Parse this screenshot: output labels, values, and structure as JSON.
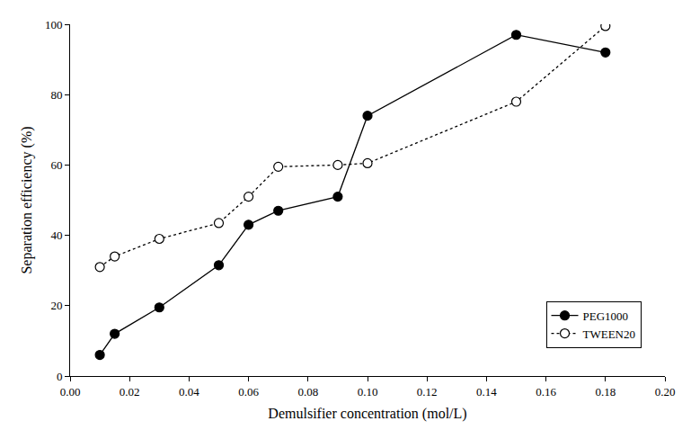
{
  "chart_data": {
    "type": "line",
    "x_label": "Demulsifier concentration (mol/L)",
    "y_label": "Separation efficiency (%)",
    "xlim": [
      0,
      0.2
    ],
    "ylim": [
      0,
      100
    ],
    "xticks": [
      {
        "value": 0,
        "label": "0.00"
      },
      {
        "value": 0.02,
        "label": "0.02"
      },
      {
        "value": 0.04,
        "label": "0.04"
      },
      {
        "value": 0.06,
        "label": "0.06"
      },
      {
        "value": 0.08,
        "label": "0.08"
      },
      {
        "value": 0.1,
        "label": "0.10"
      },
      {
        "value": 0.12,
        "label": "0.12"
      },
      {
        "value": 0.14,
        "label": "0.14"
      },
      {
        "value": 0.16,
        "label": "0.16"
      },
      {
        "value": 0.18,
        "label": "0.18"
      },
      {
        "value": 0.2,
        "label": "0.20"
      }
    ],
    "yticks": [
      0,
      20,
      40,
      60,
      80,
      100
    ],
    "grid": false,
    "legend": "lower right",
    "series": [
      {
        "name": "PEG1000",
        "color": "#000000",
        "marker": "filled circle",
        "line_style": "solid",
        "x": [
          0.01,
          0.015,
          0.03,
          0.05,
          0.06,
          0.07,
          0.09,
          0.1,
          0.15,
          0.18
        ],
        "values": [
          6,
          12,
          19.5,
          31.5,
          43,
          47,
          51,
          74,
          97,
          92
        ]
      },
      {
        "name": "TWEEN20",
        "color": "#000000",
        "marker": "open circle",
        "line_style": "dotted",
        "x": [
          0.01,
          0.015,
          0.03,
          0.05,
          0.06,
          0.07,
          0.09,
          0.1,
          0.15,
          0.18
        ],
        "values": [
          31,
          34,
          39,
          43.5,
          51,
          59.5,
          60,
          60.5,
          78,
          99.5
        ]
      }
    ]
  }
}
